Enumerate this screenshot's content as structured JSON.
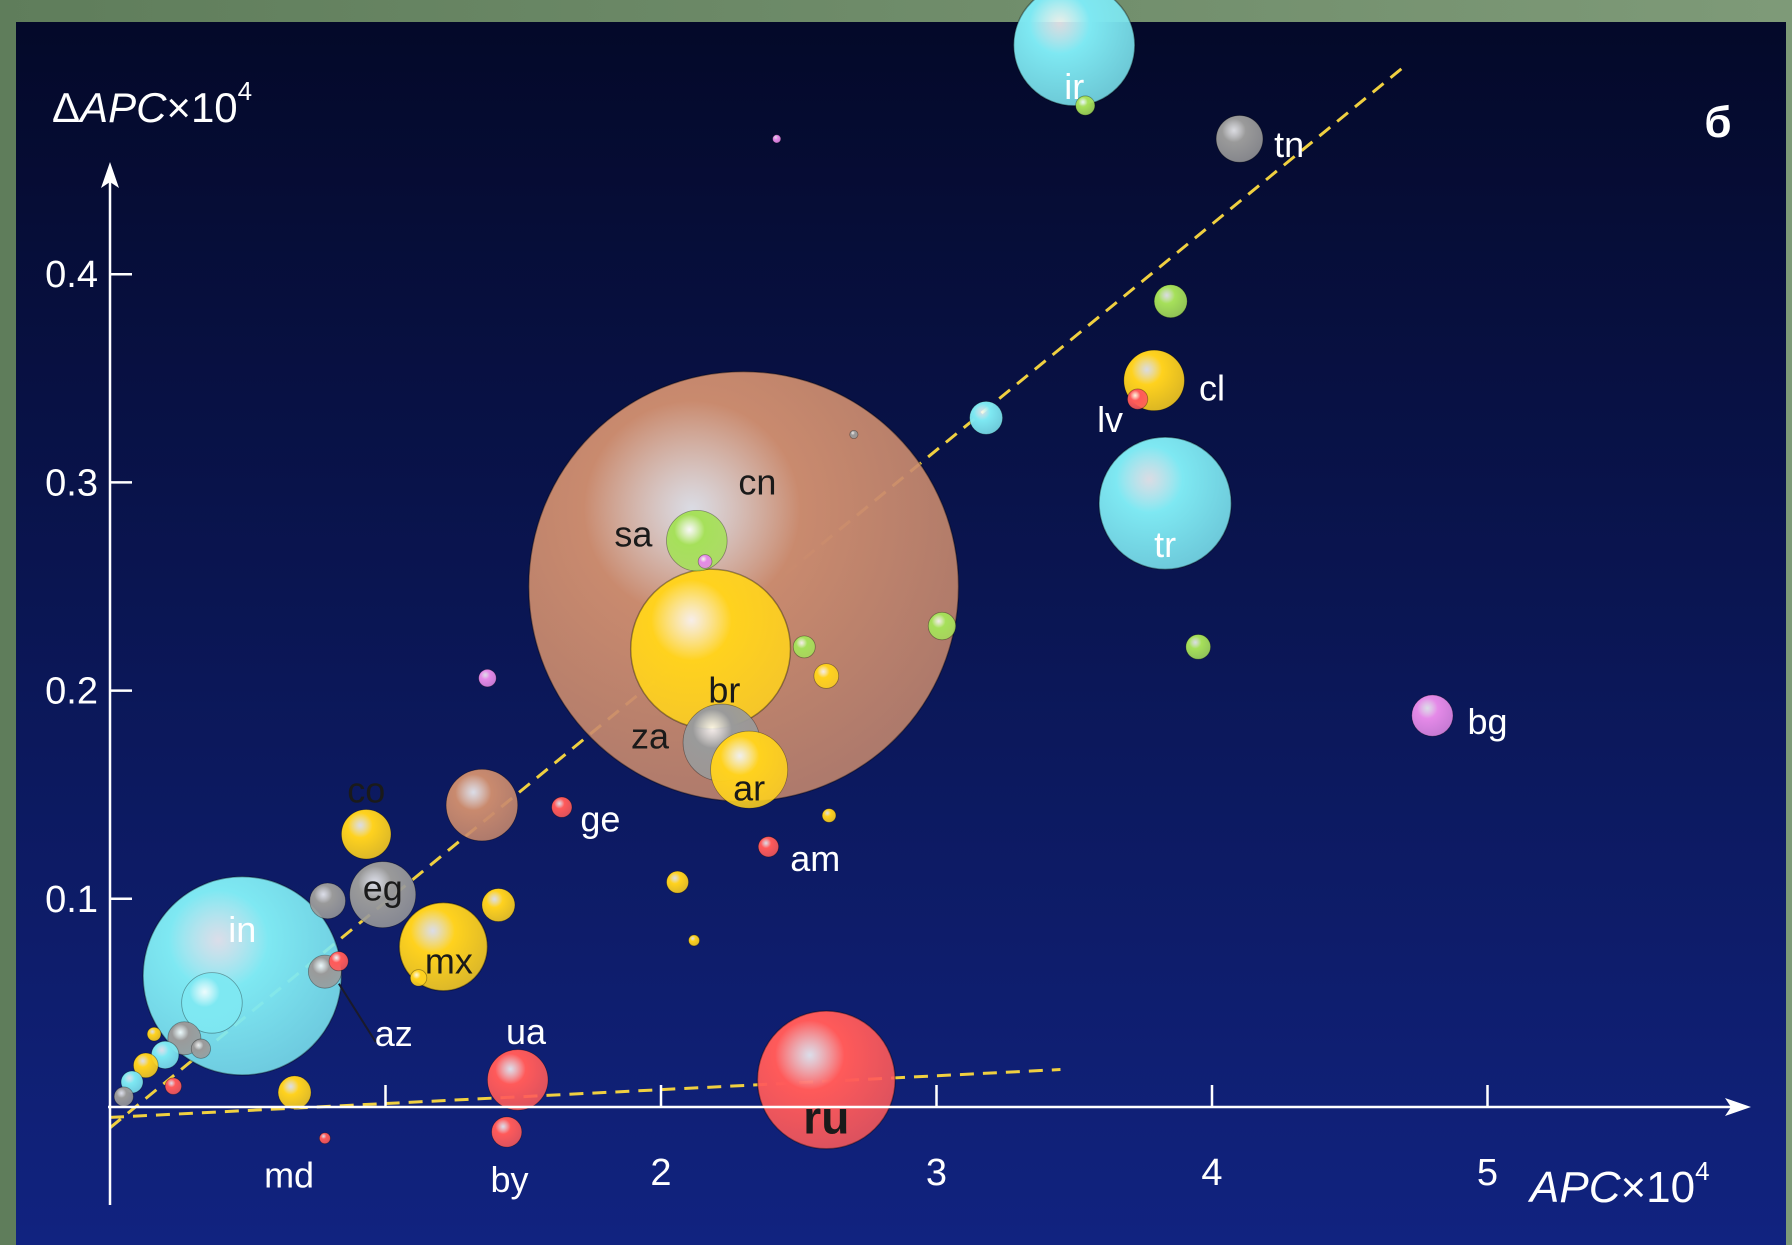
{
  "chart_data": {
    "type": "scatter",
    "panel_label": "б",
    "ylabel": {
      "prefix": "Δ",
      "main": "APC",
      "suffix": "×10",
      "exp": "4"
    },
    "xlabel": {
      "main": "APC",
      "suffix": "×10",
      "exp": "4"
    },
    "xlim": [
      0,
      5.6
    ],
    "ylim": [
      -0.04,
      0.52
    ],
    "x_ticks": [
      1,
      2,
      3,
      4,
      5
    ],
    "x_tick_labels": [
      "",
      "2",
      "3",
      "4",
      "5"
    ],
    "y_ticks": [
      0.1,
      0.2,
      0.3,
      0.4
    ],
    "y_tick_labels": [
      "0.1",
      "0.2",
      "0.3",
      "0.4"
    ],
    "grid": false,
    "legend": "none",
    "colors": {
      "background_top": "#050a2e",
      "background_bottom": "#0f1e6e",
      "axis": "#ffffff",
      "trend": "#f0d040",
      "brown": "#c98a6e",
      "yellow": "#ffd21e",
      "cyan": "#7ee8f2",
      "green": "#a6e05a",
      "gray": "#9a9a9a",
      "red": "#ff5a5a",
      "magenta": "#e58ae8"
    },
    "trend_lines": [
      {
        "x": [
          0,
          4.7
        ],
        "y": [
          -0.01,
          0.5
        ]
      },
      {
        "x": [
          0,
          3.45
        ],
        "y": [
          -0.005,
          0.018
        ]
      }
    ],
    "points": [
      {
        "x": 2.3,
        "y": 0.25,
        "r": 0.78,
        "color": "brown",
        "label": "cn",
        "lx": 2.35,
        "ly": 0.3
      },
      {
        "x": 3.5,
        "y": 0.51,
        "r": 0.22,
        "color": "cyan",
        "label": "ir",
        "lx": 3.5,
        "ly": 0.49
      },
      {
        "x": 3.83,
        "y": 0.29,
        "r": 0.24,
        "color": "cyan",
        "label": "tr",
        "lx": 3.83,
        "ly": 0.27
      },
      {
        "x": 2.18,
        "y": 0.22,
        "r": 0.29,
        "color": "yellow",
        "label": "br",
        "lx": 2.23,
        "ly": 0.2
      },
      {
        "x": 2.6,
        "y": 0.013,
        "r": 0.25,
        "color": "red",
        "label": "ru",
        "lx": 2.6,
        "ly": -0.007
      },
      {
        "x": 0.48,
        "y": 0.063,
        "r": 0.36,
        "color": "cyan",
        "label": "in",
        "lx": 0.48,
        "ly": 0.085
      },
      {
        "x": 1.21,
        "y": 0.077,
        "r": 0.16,
        "color": "yellow",
        "label": "mx",
        "lx": 1.23,
        "ly": 0.07
      },
      {
        "x": 2.13,
        "y": 0.272,
        "r": 0.11,
        "color": "green",
        "label": "sa",
        "lx": 1.9,
        "ly": 0.275
      },
      {
        "x": 2.22,
        "y": 0.175,
        "r": 0.14,
        "color": "gray",
        "label": "za",
        "lx": 1.96,
        "ly": 0.178
      },
      {
        "x": 2.32,
        "y": 0.162,
        "r": 0.14,
        "color": "yellow",
        "label": "ar",
        "lx": 2.32,
        "ly": 0.153
      },
      {
        "x": 1.35,
        "y": 0.145,
        "r": 0.13,
        "color": "brown",
        "label": "",
        "lx": 0,
        "ly": 0
      },
      {
        "x": 0.99,
        "y": 0.102,
        "r": 0.12,
        "color": "gray",
        "label": "eg",
        "lx": 0.99,
        "ly": 0.105
      },
      {
        "x": 0.93,
        "y": 0.131,
        "r": 0.09,
        "color": "yellow",
        "label": "co",
        "lx": 0.93,
        "ly": 0.152
      },
      {
        "x": 3.79,
        "y": 0.349,
        "r": 0.11,
        "color": "yellow",
        "label": "cl",
        "lx": 4.0,
        "ly": 0.345
      },
      {
        "x": 3.73,
        "y": 0.34,
        "r": 0.037,
        "color": "red",
        "label": "lv",
        "lx": 3.63,
        "ly": 0.33
      },
      {
        "x": 4.1,
        "y": 0.465,
        "r": 0.085,
        "color": "gray",
        "label": "tn",
        "lx": 4.28,
        "ly": 0.462
      },
      {
        "x": 4.8,
        "y": 0.188,
        "r": 0.075,
        "color": "magenta",
        "label": "bg",
        "lx": 5.0,
        "ly": 0.185
      },
      {
        "x": 1.48,
        "y": 0.013,
        "r": 0.11,
        "color": "red",
        "label": "ua",
        "lx": 1.51,
        "ly": 0.036
      },
      {
        "x": 1.44,
        "y": -0.012,
        "r": 0.055,
        "color": "red",
        "label": "by",
        "lx": 1.45,
        "ly": -0.035
      },
      {
        "x": 0.67,
        "y": 0.007,
        "r": 0.06,
        "color": "yellow",
        "label": "md",
        "lx": 0.65,
        "ly": -0.033
      },
      {
        "x": 0.78,
        "y": 0.065,
        "r": 0.06,
        "color": "gray",
        "label": "az",
        "lx": 1.03,
        "ly": 0.035
      },
      {
        "x": 0.83,
        "y": 0.07,
        "r": 0.035,
        "color": "red",
        "label": "",
        "lx": 0,
        "ly": 0
      },
      {
        "x": 2.39,
        "y": 0.125,
        "r": 0.037,
        "color": "red",
        "label": "am",
        "lx": 2.56,
        "ly": 0.119
      },
      {
        "x": 1.64,
        "y": 0.144,
        "r": 0.037,
        "color": "red",
        "label": "ge",
        "lx": 1.78,
        "ly": 0.138
      },
      {
        "x": 3.85,
        "y": 0.387,
        "r": 0.06,
        "color": "green",
        "label": "",
        "lx": 0,
        "ly": 0
      },
      {
        "x": 3.18,
        "y": 0.331,
        "r": 0.06,
        "color": "cyan",
        "label": "",
        "lx": 0,
        "ly": 0
      },
      {
        "x": 3.02,
        "y": 0.231,
        "r": 0.05,
        "color": "green",
        "label": "",
        "lx": 0,
        "ly": 0
      },
      {
        "x": 3.95,
        "y": 0.221,
        "r": 0.045,
        "color": "green",
        "label": "",
        "lx": 0,
        "ly": 0
      },
      {
        "x": 3.54,
        "y": 0.481,
        "r": 0.035,
        "color": "green",
        "label": "",
        "lx": 0,
        "ly": 0
      },
      {
        "x": 2.52,
        "y": 0.221,
        "r": 0.04,
        "color": "green",
        "label": "",
        "lx": 0,
        "ly": 0
      },
      {
        "x": 2.6,
        "y": 0.207,
        "r": 0.045,
        "color": "yellow",
        "label": "",
        "lx": 0,
        "ly": 0
      },
      {
        "x": 1.41,
        "y": 0.097,
        "r": 0.06,
        "color": "yellow",
        "label": "",
        "lx": 0,
        "ly": 0
      },
      {
        "x": 2.06,
        "y": 0.108,
        "r": 0.04,
        "color": "yellow",
        "label": "",
        "lx": 0,
        "ly": 0
      },
      {
        "x": 2.61,
        "y": 0.14,
        "r": 0.025,
        "color": "yellow",
        "label": "",
        "lx": 0,
        "ly": 0
      },
      {
        "x": 2.12,
        "y": 0.08,
        "r": 0.02,
        "color": "yellow",
        "label": "",
        "lx": 0,
        "ly": 0
      },
      {
        "x": 1.12,
        "y": 0.062,
        "r": 0.03,
        "color": "yellow",
        "label": "",
        "lx": 0,
        "ly": 0
      },
      {
        "x": 1.37,
        "y": 0.206,
        "r": 0.032,
        "color": "magenta",
        "label": "",
        "lx": 0,
        "ly": 0
      },
      {
        "x": 2.16,
        "y": 0.262,
        "r": 0.025,
        "color": "magenta",
        "label": "",
        "lx": 0,
        "ly": 0
      },
      {
        "x": 2.42,
        "y": 0.465,
        "r": 0.015,
        "color": "magenta",
        "label": "",
        "lx": 0,
        "ly": 0
      },
      {
        "x": 0.79,
        "y": 0.099,
        "r": 0.065,
        "color": "gray",
        "label": "",
        "lx": 0,
        "ly": 0
      },
      {
        "x": 0.37,
        "y": 0.05,
        "r": 0.11,
        "color": "cyan",
        "label": "",
        "lx": 0,
        "ly": 0
      },
      {
        "x": 0.27,
        "y": 0.033,
        "r": 0.06,
        "color": "gray",
        "label": "",
        "lx": 0,
        "ly": 0
      },
      {
        "x": 0.2,
        "y": 0.025,
        "r": 0.05,
        "color": "cyan",
        "label": "",
        "lx": 0,
        "ly": 0
      },
      {
        "x": 0.13,
        "y": 0.02,
        "r": 0.045,
        "color": "yellow",
        "label": "",
        "lx": 0,
        "ly": 0
      },
      {
        "x": 0.08,
        "y": 0.012,
        "r": 0.04,
        "color": "cyan",
        "label": "",
        "lx": 0,
        "ly": 0
      },
      {
        "x": 0.23,
        "y": 0.01,
        "r": 0.03,
        "color": "red",
        "label": "",
        "lx": 0,
        "ly": 0
      },
      {
        "x": 0.33,
        "y": 0.028,
        "r": 0.035,
        "color": "gray",
        "label": "",
        "lx": 0,
        "ly": 0
      },
      {
        "x": 0.05,
        "y": 0.005,
        "r": 0.035,
        "color": "gray",
        "label": "",
        "lx": 0,
        "ly": 0
      },
      {
        "x": 0.16,
        "y": 0.035,
        "r": 0.025,
        "color": "yellow",
        "label": "",
        "lx": 0,
        "ly": 0
      },
      {
        "x": 0.78,
        "y": -0.015,
        "r": 0.02,
        "color": "red",
        "label": "",
        "lx": 0,
        "ly": 0
      },
      {
        "x": 2.7,
        "y": 0.323,
        "r": 0.015,
        "color": "gray",
        "label": "",
        "lx": 0,
        "ly": 0
      }
    ]
  }
}
